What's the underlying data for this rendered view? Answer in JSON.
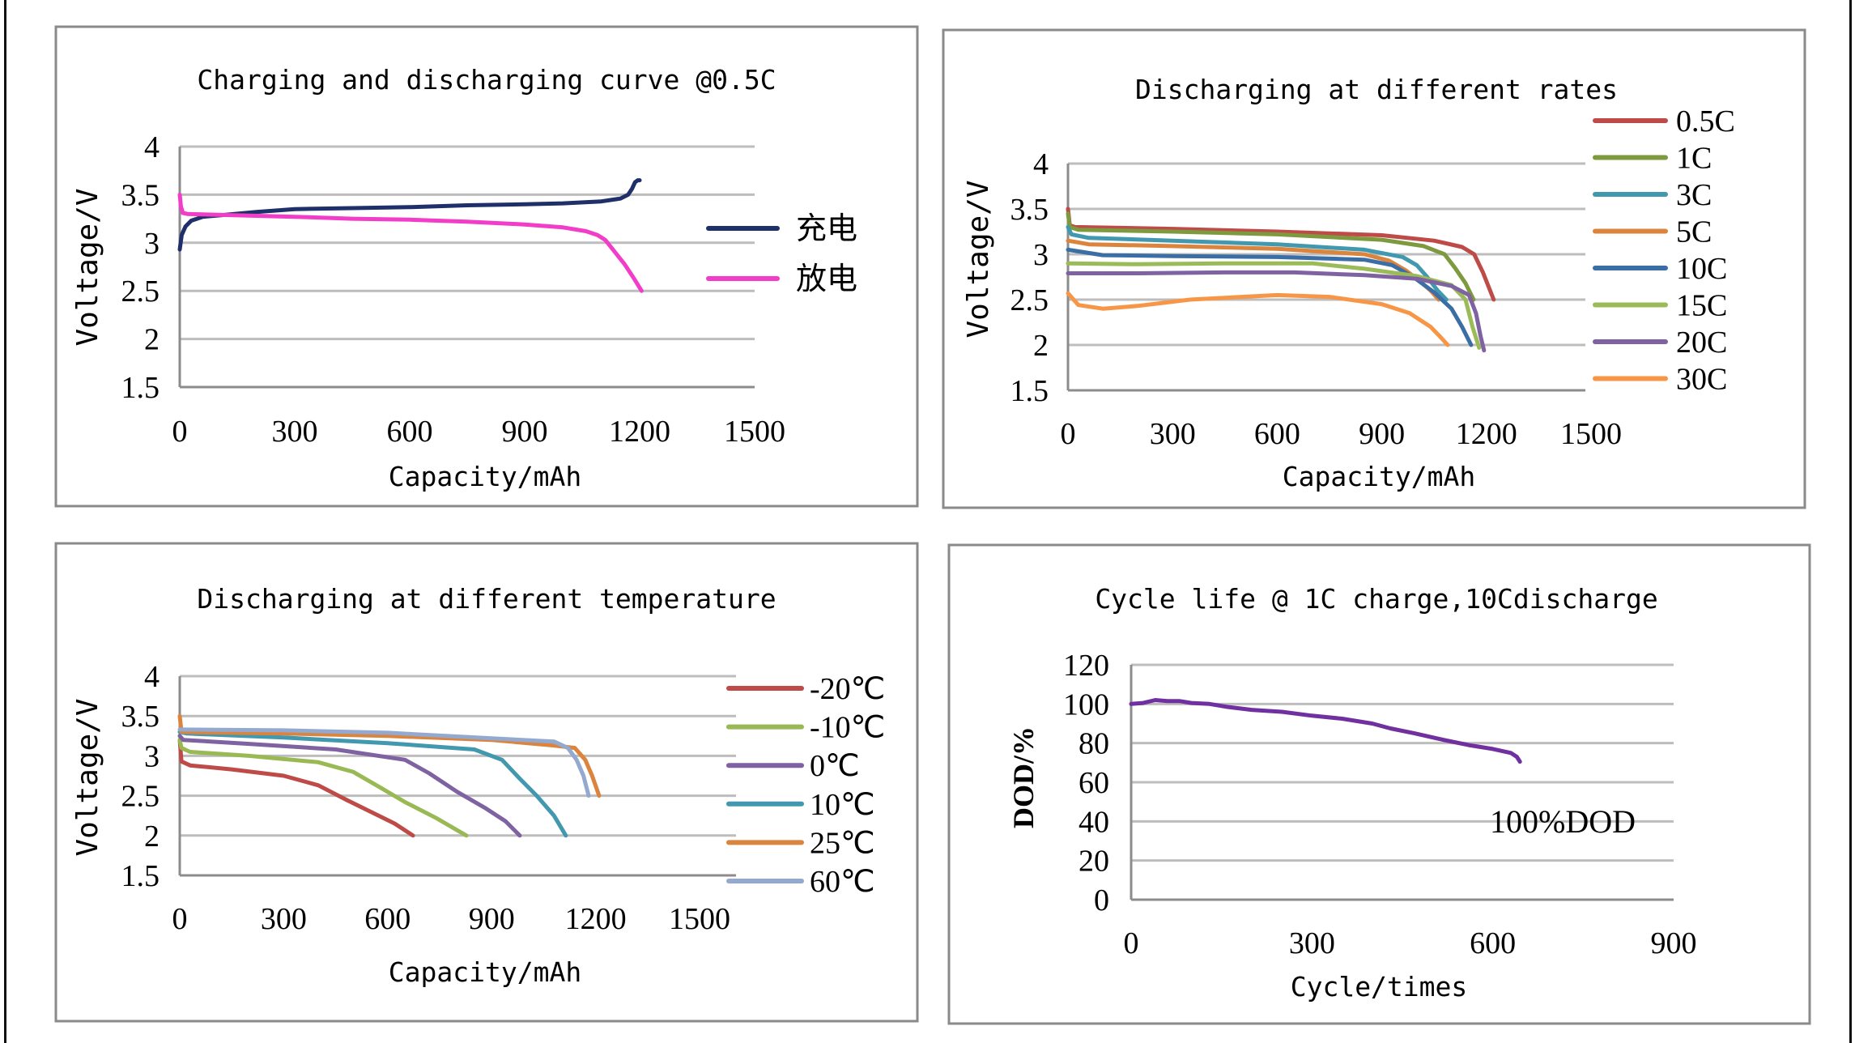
{
  "chart_data": [
    {
      "type": "line",
      "id": "charge-discharge",
      "title": "Charging and discharging curve @0.5C",
      "xlabel": "Capacity/mAh",
      "ylabel": "Voltage/V",
      "xlim": [
        0,
        1500
      ],
      "ylim": [
        1.5,
        4
      ],
      "xticks": [
        0,
        300,
        600,
        900,
        1200,
        1500
      ],
      "yticks": [
        1.5,
        2,
        2.5,
        3,
        3.5,
        4
      ],
      "ytick_labels": [
        "1.5",
        "2",
        "2.5",
        "3",
        "3.5",
        "4"
      ],
      "grid": true,
      "legend": "right",
      "series": [
        {
          "name": "充电",
          "color": "#1f2f6a",
          "x": [
            0,
            5,
            15,
            30,
            60,
            120,
            200,
            300,
            450,
            600,
            750,
            900,
            1000,
            1100,
            1150,
            1170,
            1180,
            1188,
            1195,
            1200
          ],
          "y": [
            2.93,
            3.08,
            3.17,
            3.23,
            3.27,
            3.29,
            3.32,
            3.35,
            3.36,
            3.37,
            3.39,
            3.4,
            3.41,
            3.43,
            3.46,
            3.5,
            3.56,
            3.63,
            3.65,
            3.65
          ]
        },
        {
          "name": "放电",
          "color": "#f23dc8",
          "x": [
            0,
            3,
            8,
            20,
            100,
            300,
            450,
            600,
            750,
            900,
            1000,
            1060,
            1090,
            1110,
            1130,
            1160,
            1185,
            1205
          ],
          "y": [
            3.5,
            3.38,
            3.31,
            3.3,
            3.29,
            3.27,
            3.25,
            3.24,
            3.22,
            3.19,
            3.16,
            3.12,
            3.08,
            3.03,
            2.93,
            2.78,
            2.63,
            2.5
          ]
        }
      ]
    },
    {
      "type": "line",
      "id": "rates",
      "title": "Discharging at different rates",
      "xlabel": "Capacity/mAh",
      "ylabel": "Voltage/V",
      "xlim": [
        0,
        1500
      ],
      "ylim": [
        1.5,
        4
      ],
      "xticks": [
        0,
        300,
        600,
        900,
        1200,
        1500
      ],
      "yticks": [
        1.5,
        2,
        2.5,
        3,
        3.5,
        4
      ],
      "ytick_labels": [
        "1.5",
        "2",
        "2.5",
        "3",
        "3.5",
        "4"
      ],
      "grid": true,
      "legend": "right",
      "series": [
        {
          "name": "0.5C",
          "color": "#be4b48",
          "x": [
            0,
            5,
            20,
            300,
            600,
            900,
            1050,
            1130,
            1165,
            1190,
            1221
          ],
          "y": [
            3.5,
            3.32,
            3.3,
            3.28,
            3.25,
            3.21,
            3.15,
            3.08,
            3.0,
            2.8,
            2.5
          ]
        },
        {
          "name": "1C",
          "color": "#7e9a3e",
          "x": [
            0,
            5,
            30,
            300,
            600,
            900,
            1020,
            1080,
            1110,
            1140,
            1163
          ],
          "y": [
            3.45,
            3.3,
            3.27,
            3.25,
            3.22,
            3.16,
            3.09,
            3.0,
            2.85,
            2.68,
            2.5
          ]
        },
        {
          "name": "3C",
          "color": "#4198af",
          "x": [
            0,
            10,
            60,
            300,
            600,
            850,
            960,
            1000,
            1030,
            1060,
            1085
          ],
          "y": [
            3.3,
            3.22,
            3.18,
            3.15,
            3.11,
            3.05,
            2.97,
            2.88,
            2.75,
            2.6,
            2.5
          ]
        },
        {
          "name": "5C",
          "color": "#db843d",
          "x": [
            0,
            60,
            300,
            600,
            850,
            920,
            970,
            1010,
            1040,
            1063
          ],
          "y": [
            3.15,
            3.11,
            3.09,
            3.06,
            3.0,
            2.93,
            2.82,
            2.7,
            2.6,
            2.5
          ]
        },
        {
          "name": "10C",
          "color": "#3c6ea6",
          "x": [
            0,
            100,
            300,
            600,
            850,
            930,
            990,
            1050,
            1100,
            1130,
            1156
          ],
          "y": [
            3.05,
            2.99,
            2.98,
            2.97,
            2.94,
            2.88,
            2.75,
            2.58,
            2.4,
            2.2,
            2.0
          ]
        },
        {
          "name": "15C",
          "color": "#9bbb59",
          "x": [
            0,
            200,
            450,
            700,
            850,
            1000,
            1100,
            1140,
            1160,
            1179
          ],
          "y": [
            2.9,
            2.89,
            2.9,
            2.9,
            2.84,
            2.76,
            2.66,
            2.5,
            2.2,
            1.97
          ]
        },
        {
          "name": "20C",
          "color": "#7e62a1",
          "x": [
            0,
            200,
            450,
            650,
            850,
            1000,
            1100,
            1150,
            1170,
            1183,
            1193
          ],
          "y": [
            2.79,
            2.79,
            2.8,
            2.8,
            2.77,
            2.73,
            2.65,
            2.55,
            2.35,
            2.1,
            1.94
          ]
        },
        {
          "name": "30C",
          "color": "#f79646",
          "x": [
            0,
            30,
            100,
            200,
            350,
            600,
            750,
            900,
            980,
            1040,
            1070,
            1089
          ],
          "y": [
            2.57,
            2.44,
            2.4,
            2.43,
            2.5,
            2.55,
            2.53,
            2.45,
            2.35,
            2.2,
            2.08,
            2.0
          ]
        }
      ]
    },
    {
      "type": "line",
      "id": "temperature",
      "title": "Discharging at different temperature",
      "xlabel": "Capacity/mAh",
      "ylabel": "Voltage/V",
      "xlim": [
        0,
        1500
      ],
      "ylim": [
        1.5,
        4
      ],
      "xticks": [
        0,
        300,
        600,
        900,
        1200,
        1500
      ],
      "yticks": [
        1.5,
        2,
        2.5,
        3,
        3.5,
        4
      ],
      "ytick_labels": [
        "1.5",
        "2",
        "2.5",
        "3",
        "3.5",
        "4"
      ],
      "grid": true,
      "legend": "right",
      "series": [
        {
          "name": "-20℃",
          "color": "#be4b48",
          "x": [
            0,
            5,
            30,
            150,
            300,
            400,
            480,
            550,
            620,
            673
          ],
          "y": [
            3.2,
            2.93,
            2.88,
            2.83,
            2.75,
            2.63,
            2.45,
            2.3,
            2.15,
            2.0
          ]
        },
        {
          "name": "-10℃",
          "color": "#98b954",
          "x": [
            0,
            5,
            30,
            200,
            400,
            500,
            580,
            650,
            740,
            827
          ],
          "y": [
            3.2,
            3.1,
            3.05,
            3.0,
            2.92,
            2.8,
            2.6,
            2.42,
            2.22,
            2.0
          ]
        },
        {
          "name": "0℃",
          "color": "#7e62a1",
          "x": [
            0,
            10,
            200,
            450,
            650,
            720,
            800,
            880,
            940,
            981
          ],
          "y": [
            3.25,
            3.2,
            3.15,
            3.08,
            2.95,
            2.78,
            2.55,
            2.35,
            2.18,
            2.0
          ]
        },
        {
          "name": "10℃",
          "color": "#4198af",
          "x": [
            0,
            20,
            300,
            600,
            850,
            930,
            980,
            1030,
            1080,
            1114
          ],
          "y": [
            3.3,
            3.28,
            3.23,
            3.16,
            3.08,
            2.95,
            2.72,
            2.5,
            2.25,
            2.0
          ]
        },
        {
          "name": "25℃",
          "color": "#db843d",
          "x": [
            0,
            5,
            300,
            600,
            900,
            1080,
            1140,
            1170,
            1190,
            1210
          ],
          "y": [
            3.5,
            3.3,
            3.28,
            3.25,
            3.2,
            3.13,
            3.1,
            2.95,
            2.75,
            2.5
          ]
        },
        {
          "name": "60℃",
          "color": "#93a9cf",
          "x": [
            0,
            300,
            600,
            900,
            1080,
            1120,
            1145,
            1165,
            1180
          ],
          "y": [
            3.33,
            3.32,
            3.29,
            3.22,
            3.18,
            3.1,
            2.95,
            2.75,
            2.5
          ]
        }
      ]
    },
    {
      "type": "line",
      "id": "cycle-life",
      "title": "Cycle life @ 1C charge,10Cdischarge",
      "xlabel": "Cycle/times",
      "ylabel": "DOD/%",
      "xlim": [
        0,
        900
      ],
      "ylim": [
        0,
        120
      ],
      "xticks": [
        0,
        300,
        600,
        900
      ],
      "yticks": [
        0,
        20,
        40,
        60,
        80,
        100,
        120
      ],
      "ytick_labels": [
        "0",
        "20",
        "40",
        "60",
        "80",
        "100",
        "120"
      ],
      "grid": true,
      "annotation": "100%DOD",
      "series": [
        {
          "name": "100%DOD",
          "color": "#7030a0",
          "x": [
            0,
            20,
            40,
            60,
            80,
            100,
            130,
            160,
            200,
            250,
            300,
            350,
            400,
            430,
            470,
            520,
            560,
            600,
            630,
            640,
            645
          ],
          "y": [
            100,
            100.5,
            102,
            101.5,
            101.5,
            100.5,
            100,
            98.5,
            97,
            96,
            94,
            92.5,
            90,
            87.5,
            85,
            81.5,
            79,
            77,
            75,
            73,
            70.5
          ]
        }
      ]
    }
  ]
}
